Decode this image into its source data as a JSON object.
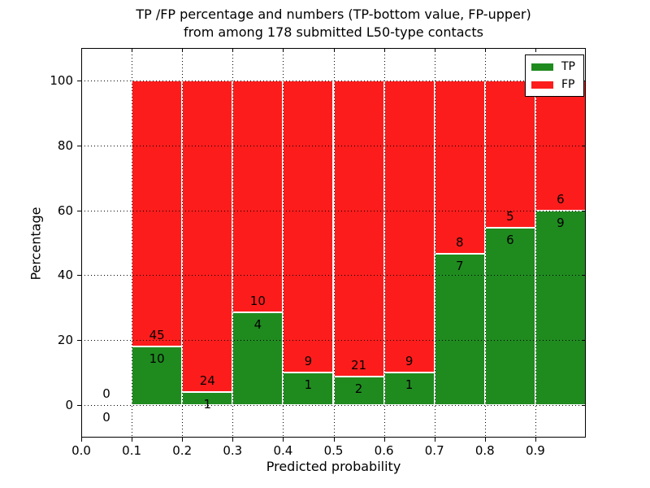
{
  "figure": {
    "title_line1": "TP /FP percentage and numbers (TP-bottom value, FP-upper)",
    "title_line2": "from among 178 submitted L50-type contacts",
    "background_color": "#ffffff",
    "text_color": "#000000"
  },
  "chart_data": {
    "type": "bar",
    "stacked": true,
    "title": "TP /FP percentage and numbers (TP-bottom value, FP-upper)\nfrom among 178 submitted L50-type contacts",
    "xlabel": "Predicted probability",
    "ylabel": "Percentage",
    "xlim": [
      0.0,
      1.0
    ],
    "ylim": [
      -10,
      110
    ],
    "grid": true,
    "grid_style": "dotted",
    "grid_color": "#000000",
    "bar_edge_color": "#ffffff",
    "x_tick_values": [
      0.0,
      0.1,
      0.2,
      0.3,
      0.4,
      0.5,
      0.6,
      0.7,
      0.8,
      0.9
    ],
    "x_tick_labels": [
      "0.0",
      "0.1",
      "0.2",
      "0.3",
      "0.4",
      "0.5",
      "0.6",
      "0.7",
      "0.8",
      "0.9"
    ],
    "y_tick_values": [
      0,
      20,
      40,
      60,
      80,
      100
    ],
    "y_tick_labels": [
      "0",
      "20",
      "40",
      "60",
      "80",
      "100"
    ],
    "total_contacts": 178,
    "series_note": "TP percentage bottom (green), FP percentage stacked to 100 (red); labels show counts: FP above boundary, TP below",
    "bins": [
      {
        "range": [
          0.0,
          0.1
        ],
        "tp_count": 0,
        "fp_count": 0,
        "tp_pct": 0.0,
        "fp_pct": 0.0
      },
      {
        "range": [
          0.1,
          0.2
        ],
        "tp_count": 10,
        "fp_count": 45,
        "tp_pct": 18.18,
        "fp_pct": 81.82
      },
      {
        "range": [
          0.2,
          0.3
        ],
        "tp_count": 1,
        "fp_count": 24,
        "tp_pct": 4.0,
        "fp_pct": 96.0
      },
      {
        "range": [
          0.3,
          0.4
        ],
        "tp_count": 4,
        "fp_count": 10,
        "tp_pct": 28.57,
        "fp_pct": 71.43
      },
      {
        "range": [
          0.4,
          0.5
        ],
        "tp_count": 1,
        "fp_count": 9,
        "tp_pct": 10.0,
        "fp_pct": 90.0
      },
      {
        "range": [
          0.5,
          0.6
        ],
        "tp_count": 2,
        "fp_count": 21,
        "tp_pct": 8.7,
        "fp_pct": 91.3
      },
      {
        "range": [
          0.6,
          0.7
        ],
        "tp_count": 1,
        "fp_count": 9,
        "tp_pct": 10.0,
        "fp_pct": 90.0
      },
      {
        "range": [
          0.7,
          0.8
        ],
        "tp_count": 7,
        "fp_count": 8,
        "tp_pct": 46.67,
        "fp_pct": 53.33
      },
      {
        "range": [
          0.8,
          0.9
        ],
        "tp_count": 6,
        "fp_count": 5,
        "tp_pct": 54.55,
        "fp_pct": 45.45
      },
      {
        "range": [
          0.9,
          1.0
        ],
        "tp_count": 9,
        "fp_count": 6,
        "tp_pct": 60.0,
        "fp_pct": 40.0
      }
    ],
    "legend": {
      "position": "upper right",
      "entries": [
        {
          "label": "TP",
          "color": "#1f8b1f"
        },
        {
          "label": "FP",
          "color": "#fd1c1c"
        }
      ]
    }
  }
}
